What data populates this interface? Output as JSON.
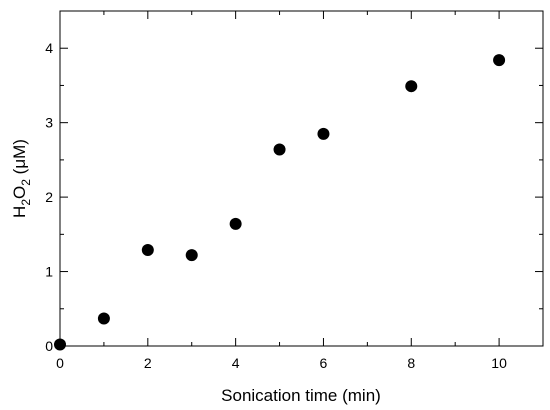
{
  "chart_data": {
    "type": "scatter",
    "title": "",
    "xlabel": "Sonication time (min)",
    "ylabel": {
      "base": "H",
      "sub1": "2",
      "mid": "O",
      "sub2": "2",
      "rest": " (μM)"
    },
    "xlim": [
      0,
      11
    ],
    "ylim": [
      0,
      4.5
    ],
    "xticks": [
      0,
      2,
      4,
      6,
      8,
      10
    ],
    "xtick_labels": [
      "0",
      "2",
      "4",
      "6",
      "8",
      "10"
    ],
    "yticks": [
      0,
      1,
      2,
      3,
      4
    ],
    "ytick_labels": [
      "0",
      "1",
      "2",
      "3",
      "4"
    ],
    "x_minor_step": 1,
    "y_minor_step": 0.5,
    "grid": false,
    "legend": "none",
    "marker_color": "#000000",
    "points": [
      {
        "x": 0,
        "y": 0.02
      },
      {
        "x": 1,
        "y": 0.37
      },
      {
        "x": 2,
        "y": 1.29
      },
      {
        "x": 3,
        "y": 1.22
      },
      {
        "x": 4,
        "y": 1.64
      },
      {
        "x": 5,
        "y": 2.64
      },
      {
        "x": 6,
        "y": 2.85
      },
      {
        "x": 8,
        "y": 3.49
      },
      {
        "x": 10,
        "y": 3.84
      }
    ]
  }
}
